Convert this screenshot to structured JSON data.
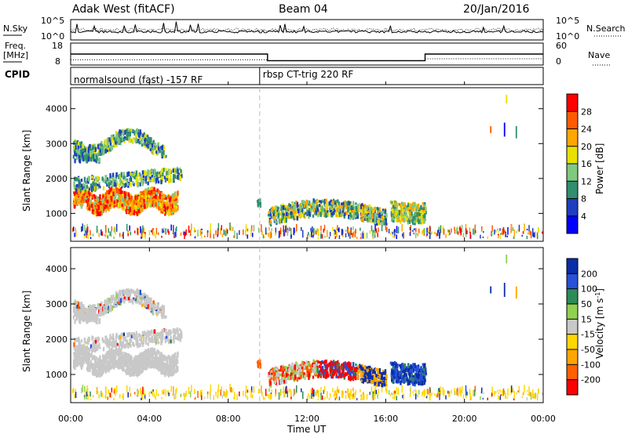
{
  "header": {
    "station": "Adak West (fitACF)",
    "beam": "Beam 04",
    "date": "20/Jan/2016"
  },
  "noise_panel": {
    "left_label": "N.Sky",
    "right_label": "N.Search",
    "left_ticks": [
      "10^5",
      "10^0"
    ],
    "right_ticks": [
      "10^5",
      "10^0"
    ]
  },
  "freq_panel": {
    "left_label_1": "Freq.",
    "left_label_2": "[MHz]",
    "right_label": "Nave",
    "left_ticks": [
      "18",
      "8"
    ],
    "right_ticks": [
      "60",
      "0"
    ],
    "freq_steps": [
      {
        "t": 0,
        "v": 13
      },
      {
        "t": 10,
        "v": 9.5
      },
      {
        "t": 18,
        "v": 13
      },
      {
        "t": 24,
        "v": 13
      }
    ],
    "nave_steps": [
      {
        "t": 0,
        "v": 12
      },
      {
        "t": 10,
        "v": 8
      },
      {
        "t": 18,
        "v": 15
      },
      {
        "t": 24,
        "v": 15
      }
    ]
  },
  "cpid_panel": {
    "label": "CPID",
    "segments": [
      {
        "start": 0,
        "end": 9.6,
        "text": "normalsound (fast) -157 RF"
      },
      {
        "start": 9.6,
        "end": 24,
        "text": "rbsp CT-trig 220 RF"
      }
    ]
  },
  "chart_data": [
    {
      "type": "heatmap",
      "name": "power",
      "ylabel": "Slant Range [km]",
      "ylim": [
        200,
        4600
      ],
      "yticks": [
        1000,
        2000,
        3000,
        4000
      ],
      "colorbar": {
        "label": "Power [dB]",
        "ticks": [
          28,
          24,
          20,
          16,
          12,
          8,
          4
        ],
        "colors": [
          "#ff0000",
          "#ff5a00",
          "#ffa500",
          "#e8e000",
          "#7fc97f",
          "#2f8f6f",
          "#1f3fbf",
          "#0000ff"
        ]
      }
    },
    {
      "type": "heatmap",
      "name": "velocity",
      "ylabel": "Slant Range [km]",
      "ylim": [
        200,
        4600
      ],
      "yticks": [
        1000,
        2000,
        3000,
        4000
      ],
      "colorbar": {
        "label": "Velocity [m s^-1]",
        "ticks": [
          200,
          100,
          50,
          15,
          -15,
          -50,
          -100,
          -200
        ],
        "colors": [
          "#0a2ea8",
          "#2850d8",
          "#2e8b57",
          "#8fd14f",
          "#c8c8c8",
          "#ffd700",
          "#ffa500",
          "#ff6000",
          "#ff0000"
        ]
      }
    }
  ],
  "x_axis": {
    "label": "Time UT",
    "ticks": [
      "00:00",
      "04:00",
      "08:00",
      "12:00",
      "16:00",
      "20:00",
      "00:00"
    ],
    "range_hours": [
      0,
      24
    ]
  }
}
